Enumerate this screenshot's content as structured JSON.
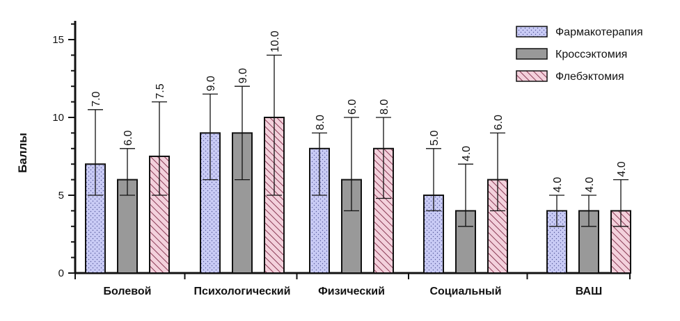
{
  "chart_data": {
    "type": "bar",
    "ylabel": "Баллы",
    "ylim": [
      0,
      16
    ],
    "yticks": [
      "0",
      "5",
      "10",
      "15"
    ],
    "categories": [
      "Болевой",
      "Психологический",
      "Физический",
      "Социальный",
      "ВАШ"
    ],
    "legend_position": "top-right",
    "series": [
      {
        "name": "Фармакотерапия",
        "color": "#c9cbf5",
        "pattern": "dots",
        "values": [
          7.0,
          9.0,
          8.0,
          5.0,
          4.0
        ],
        "labels": [
          "7.0",
          "9.0",
          "8.0",
          "5.0",
          "4.0"
        ],
        "err_low": [
          5.0,
          6.0,
          5.0,
          4.0,
          3.0
        ],
        "err_high": [
          10.5,
          11.5,
          9.0,
          8.0,
          5.0
        ]
      },
      {
        "name": "Кроссэктомия",
        "color": "#999999",
        "pattern": "solid",
        "values": [
          6.0,
          9.0,
          6.0,
          4.0,
          4.0
        ],
        "labels": [
          "6.0",
          "9.0",
          "6.0",
          "4.0",
          "4.0"
        ],
        "err_low": [
          5.0,
          6.0,
          4.0,
          3.0,
          3.0
        ],
        "err_high": [
          8.0,
          12.0,
          10.0,
          7.0,
          5.0
        ]
      },
      {
        "name": "Флебэктомия",
        "color": "#f3d1dc",
        "pattern": "hatch",
        "values": [
          7.5,
          10.0,
          8.0,
          6.0,
          4.0
        ],
        "labels": [
          "7.5",
          "10.0",
          "8.0",
          "6.0",
          "4.0"
        ],
        "err_low": [
          5.0,
          5.0,
          4.8,
          4.0,
          3.0
        ],
        "err_high": [
          11.0,
          14.0,
          10.0,
          9.0,
          6.0
        ]
      }
    ]
  }
}
